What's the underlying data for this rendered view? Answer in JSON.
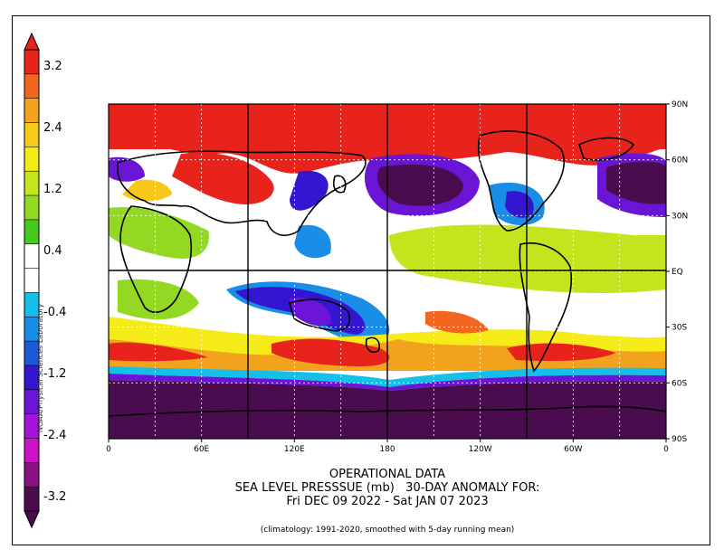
{
  "colorbar": {
    "levels": [
      {
        "color": "#e8231b"
      },
      {
        "color": "#f2661f"
      },
      {
        "color": "#f2a21c"
      },
      {
        "color": "#f7c81a"
      },
      {
        "color": "#f5eb19"
      },
      {
        "color": "#c4e51e"
      },
      {
        "color": "#93d924"
      },
      {
        "color": "#47c924"
      },
      {
        "color": "#ffffff"
      },
      {
        "color": "#ffffff"
      },
      {
        "color": "#14c0e8"
      },
      {
        "color": "#1a8ee6"
      },
      {
        "color": "#1d5ad4"
      },
      {
        "color": "#3516d0"
      },
      {
        "color": "#6a14d6"
      },
      {
        "color": "#a314d8"
      },
      {
        "color": "#cc12c2"
      },
      {
        "color": "#8a1180"
      },
      {
        "color": "#4a0c4e"
      }
    ],
    "labels": [
      "3.2",
      "2.4",
      "1.2",
      "0.4",
      "-0.4",
      "-1.2",
      "-2.4",
      "-3.2"
    ]
  },
  "axes": {
    "x_ticks": [
      "0",
      "60E",
      "120E",
      "180",
      "120W",
      "60W",
      "0"
    ],
    "y_ticks": [
      "90N",
      "60N",
      "30N",
      "EQ",
      "30S",
      "60S",
      "90S"
    ]
  },
  "title": {
    "line1": "OPERATIONAL DATA",
    "line2": "SEA LEVEL PRESSSUE (mb)   30-DAY ANOMALY FOR:",
    "line3": "Fri DEC 09 2022 - Sat JAN 07 2023"
  },
  "footnote": "(climatology: 1991-2020, smoothed with 5-day running mean)",
  "credit": "NOAA/Physical Sciences Laboratory"
}
